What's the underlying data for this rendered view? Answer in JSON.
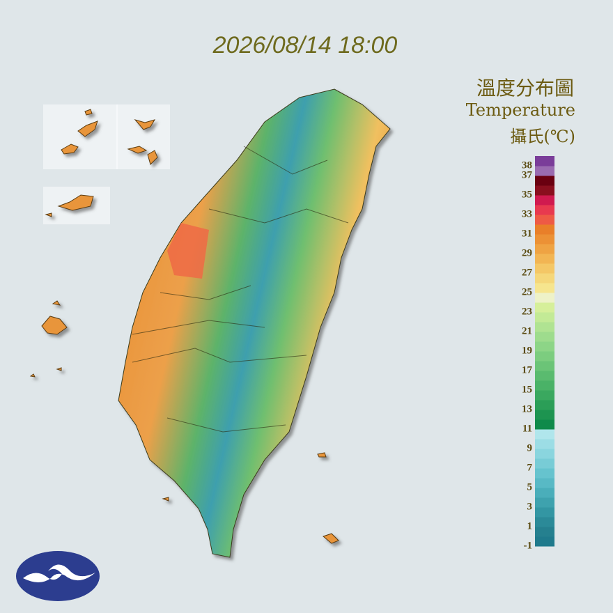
{
  "timestamp": "2026/08/14 18:00",
  "legend": {
    "title": "溫度分布圖",
    "subtitle": "Temperature",
    "unit": "攝氏(℃)",
    "ticks": [
      38,
      37,
      35,
      33,
      31,
      29,
      27,
      25,
      23,
      21,
      19,
      17,
      15,
      13,
      11,
      9,
      7,
      5,
      3,
      1,
      -1
    ],
    "colors": [
      "#1f7a8c",
      "#25808f",
      "#2b8a98",
      "#3396a3",
      "#3ea2ae",
      "#4aaeba",
      "#58b9c5",
      "#66c3ce",
      "#78ccd6",
      "#8ad5de",
      "#9cdde5",
      "#b0e6ec",
      "#0f8a4a",
      "#1d9450",
      "#2b9e57",
      "#3aa85f",
      "#4ab267",
      "#5abb6f",
      "#6bc477",
      "#7ccd7f",
      "#8dd587",
      "#9edc8d",
      "#b0e392",
      "#c3ea96",
      "#d6ef9a",
      "#eef2c8",
      "#f6e58e",
      "#f5d77a",
      "#f4c766",
      "#f2b553",
      "#efa343",
      "#ec9135",
      "#e97f29",
      "#ee5a45",
      "#e8394f",
      "#d01a4f",
      "#8a0f1e",
      "#6a0010",
      "#9a6bb0",
      "#7a3d99"
    ]
  }
}
